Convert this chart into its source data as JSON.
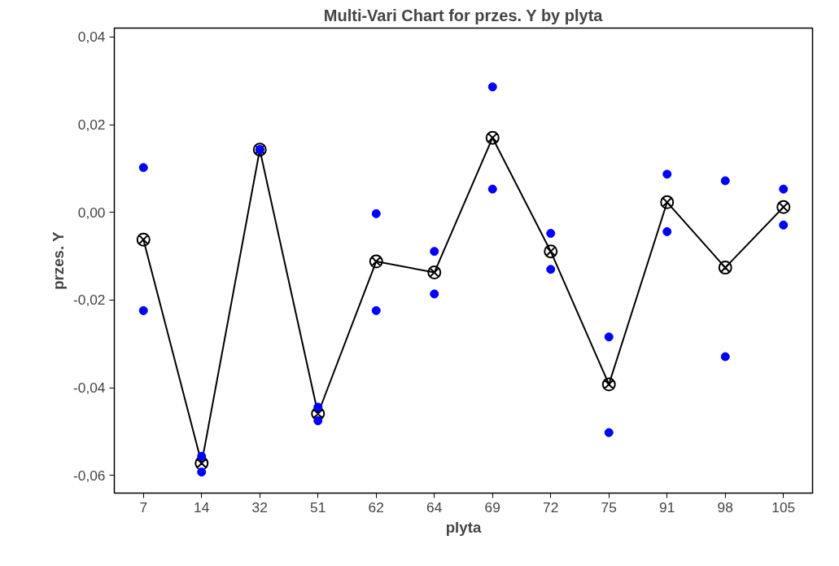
{
  "chart_data": {
    "type": "line",
    "title": "Multi-Vari Chart for przes. Y by plyta",
    "xlabel": "plyta",
    "ylabel": "przes. Y",
    "categories": [
      "7",
      "14",
      "32",
      "51",
      "62",
      "64",
      "69",
      "72",
      "75",
      "91",
      "98",
      "105"
    ],
    "series": [
      {
        "type": "scatter",
        "color": "#0000ff",
        "x": [
          "7",
          "7",
          "14",
          "14",
          "32",
          "32",
          "51",
          "51",
          "62",
          "62",
          "64",
          "64",
          "69",
          "69",
          "72",
          "72",
          "75",
          "75",
          "91",
          "91",
          "98",
          "98",
          "105",
          "105"
        ],
        "values": [
          0.0102,
          -0.0224,
          -0.0556,
          -0.0592,
          0.0143,
          0.0143,
          -0.0444,
          -0.0475,
          -0.0003,
          -0.0224,
          -0.0089,
          -0.0186,
          0.0286,
          0.0053,
          -0.0048,
          -0.013,
          -0.0284,
          -0.0502,
          0.0087,
          -0.0044,
          0.0072,
          -0.0329,
          0.0053,
          -0.0029
        ]
      },
      {
        "marker": "cross",
        "color": "#000000",
        "values": [
          -0.0062,
          -0.0572,
          0.0143,
          -0.0459,
          -0.0112,
          -0.0137,
          0.017,
          -0.0089,
          -0.0392,
          0.0023,
          -0.0126,
          0.0012
        ]
      }
    ],
    "ylim": [
      -0.064,
      0.042
    ],
    "yticks": [
      {
        "value": -0.06,
        "label": "-0,06"
      },
      {
        "value": -0.04,
        "label": "-0,04"
      },
      {
        "value": -0.02,
        "label": "-0,02"
      },
      {
        "value": 0.0,
        "label": "0,00"
      },
      {
        "value": 0.02,
        "label": "0,02"
      },
      {
        "value": 0.04,
        "label": "0,04"
      }
    ],
    "grid": false,
    "marker": "circle",
    "line_style": "solid"
  }
}
